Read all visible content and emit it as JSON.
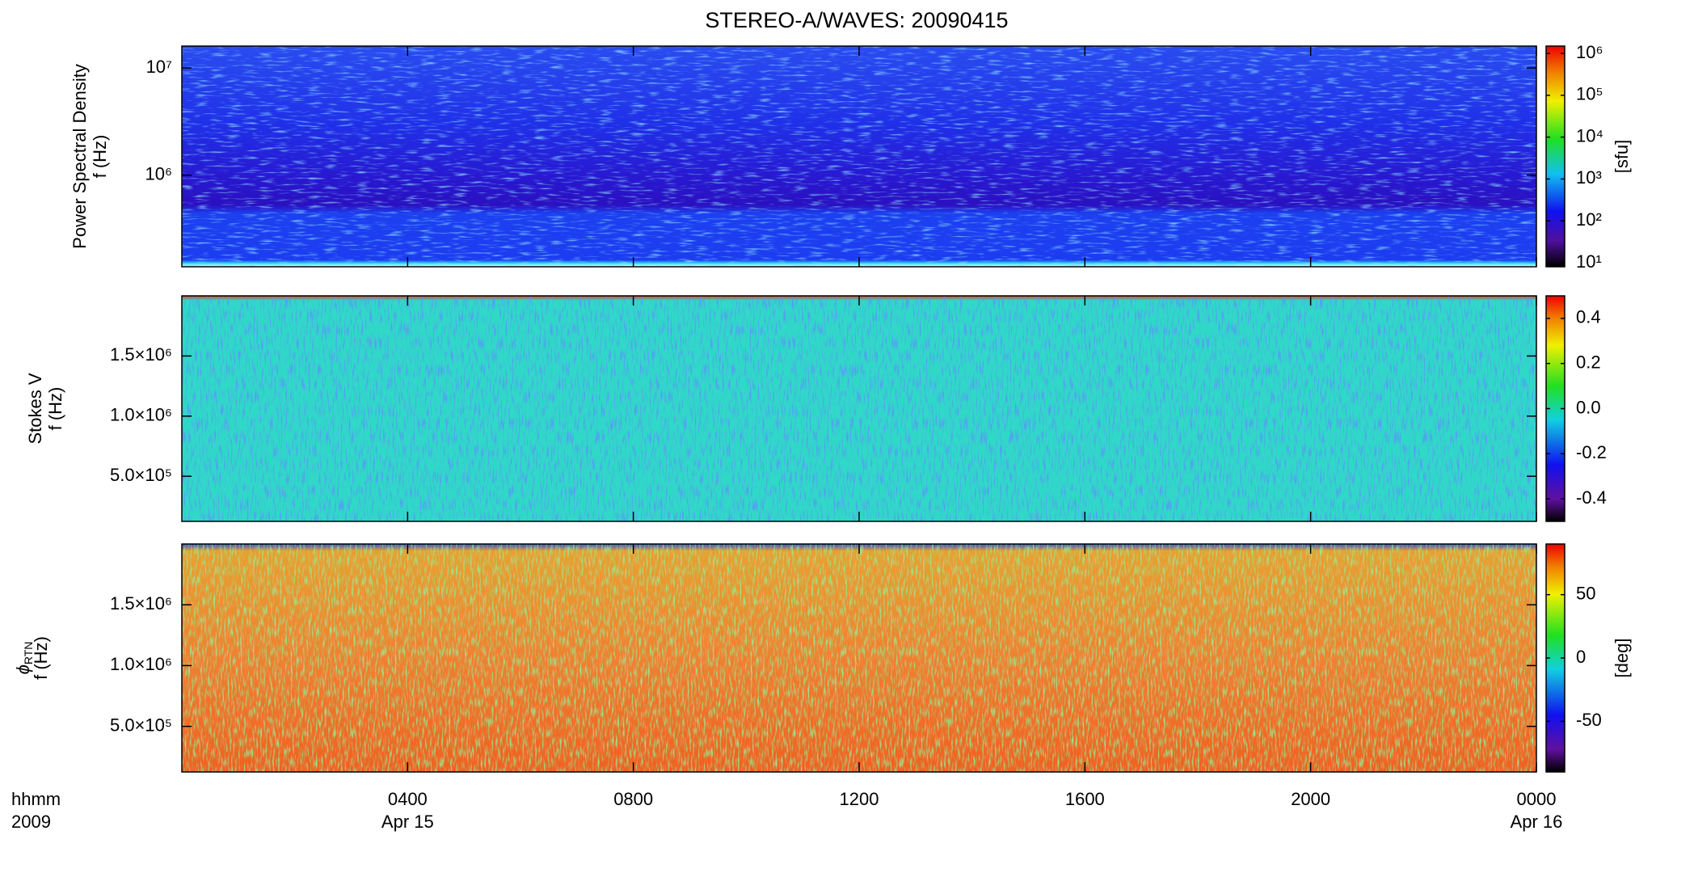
{
  "chart_data": [
    {
      "type": "spectrogram",
      "title": "STEREO-A/WAVES: 20090415",
      "ylabel": "Power Spectral Density",
      "ylabel2": "f (Hz)",
      "ylog": true,
      "ylim": [
        140000,
        16000000
      ],
      "yticks": [
        {
          "value": 1000000,
          "label": "10⁶"
        },
        {
          "value": 10000000,
          "label": "10⁷"
        }
      ],
      "colorbar": {
        "log": true,
        "lim": [
          8,
          1500000
        ],
        "ticks": [
          {
            "value": 10,
            "label": "10¹"
          },
          {
            "value": 100,
            "label": "10²"
          },
          {
            "value": 1000,
            "label": "10³"
          },
          {
            "value": 10000,
            "label": "10⁴"
          },
          {
            "value": 100000,
            "label": "10⁵"
          },
          {
            "value": 1000000,
            "label": "10⁶"
          }
        ],
        "label": "[sfu]"
      }
    },
    {
      "type": "spectrogram",
      "ylabel": "Stokes V",
      "ylabel2": "f (Hz)",
      "ylim": [
        125000,
        2000000
      ],
      "yticks": [
        {
          "value": 500000,
          "label": "5.0×10⁵"
        },
        {
          "value": 1000000,
          "label": "1.0×10⁶"
        },
        {
          "value": 1500000,
          "label": "1.5×10⁶"
        }
      ],
      "colorbar": {
        "lim": [
          -0.5,
          0.5
        ],
        "ticks": [
          -0.4,
          -0.2,
          {
            "value": 0,
            "label": "0.0"
          },
          0.2,
          0.4
        ]
      }
    },
    {
      "type": "spectrogram",
      "ylabel_symbol": "ϕ",
      "ylabel_subscript": "RTN",
      "ylabel2": "f (Hz)",
      "ylim": [
        125000,
        2000000
      ],
      "yticks": [
        {
          "value": 500000,
          "label": "5.0×10⁵"
        },
        {
          "value": 1000000,
          "label": "1.0×10⁶"
        },
        {
          "value": 1500000,
          "label": "1.5×10⁶"
        }
      ],
      "colorbar": {
        "lim": [
          -90,
          90
        ],
        "ticks": [
          -50,
          0,
          50
        ],
        "label": "[deg]"
      },
      "xlim": [
        0,
        24
      ],
      "xticks": [
        {
          "value": 4,
          "label": "0400"
        },
        {
          "value": 8,
          "label": "0800"
        },
        {
          "value": 12,
          "label": "1200"
        },
        {
          "value": 16,
          "label": "1600"
        },
        {
          "value": 20,
          "label": "2000"
        },
        {
          "value": 24,
          "label": "0000"
        }
      ],
      "x_date_labels": [
        {
          "value": 4,
          "label": "Apr 15"
        },
        {
          "value": 24,
          "label": "Apr 16"
        }
      ],
      "xlabel": "hhmm",
      "xlabel2": "2009"
    }
  ]
}
